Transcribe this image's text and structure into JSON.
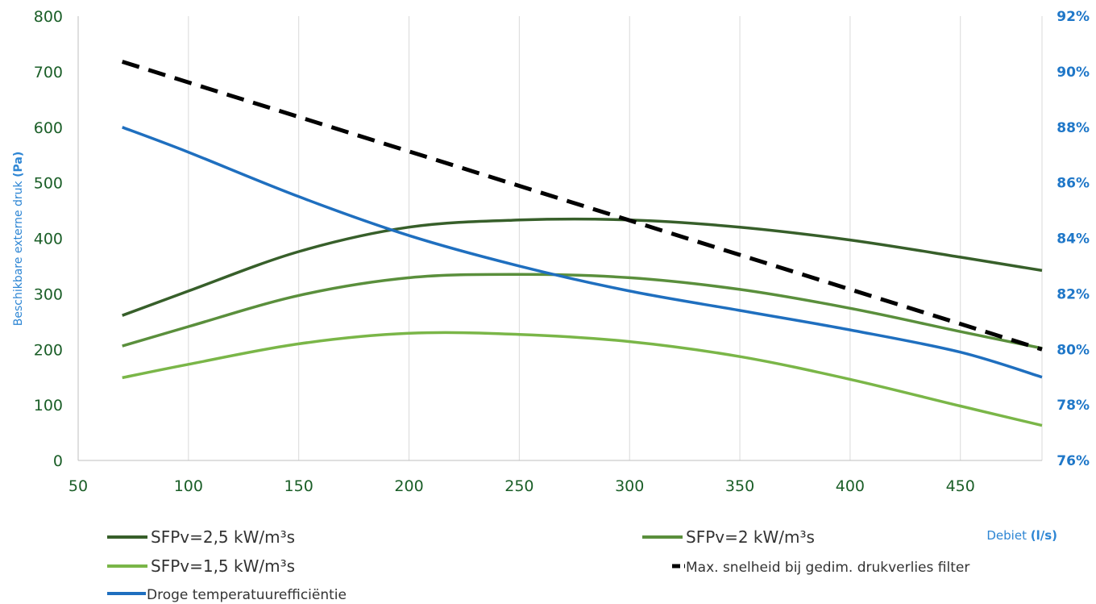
{
  "chart_data": {
    "type": "line",
    "xlabel": "Debiet",
    "xlabel_unit": "(l/s)",
    "ylabel": "Beschikbare externe druk",
    "ylabel_unit": "(Pa)",
    "xlim": [
      50,
      487
    ],
    "ylim": [
      0,
      800
    ],
    "y2lim": [
      76,
      92
    ],
    "x_ticks": [
      "50",
      "100",
      "150",
      "200",
      "250",
      "300",
      "350",
      "400",
      "450"
    ],
    "y_ticks": [
      "0",
      "100",
      "200",
      "300",
      "400",
      "500",
      "600",
      "700",
      "800"
    ],
    "y2_ticks": [
      "76%",
      "78%",
      "80%",
      "82%",
      "84%",
      "86%",
      "88%",
      "90%",
      "92%"
    ],
    "grid": "vertical",
    "legend_position": "bottom",
    "series": [
      {
        "name": "SFPv=2,5 kW/m³s",
        "axis": "left",
        "color": "#375f2a",
        "style": "solid",
        "x": [
          70,
          100,
          150,
          200,
          250,
          300,
          350,
          400,
          450,
          487
        ],
        "y": [
          261,
          305,
          376,
          420,
          433,
          433,
          420,
          397,
          366,
          342
        ]
      },
      {
        "name": "SFPv=2 kW/m³s",
        "axis": "left",
        "color": "#5a8f3c",
        "style": "solid",
        "x": [
          70,
          100,
          150,
          200,
          250,
          300,
          350,
          400,
          450,
          487
        ],
        "y": [
          206,
          241,
          297,
          329,
          335,
          329,
          308,
          274,
          232,
          202
        ]
      },
      {
        "name": "SFPv=1,5 kW/m³s",
        "axis": "left",
        "color": "#7ab648",
        "style": "solid",
        "x": [
          70,
          100,
          150,
          200,
          250,
          300,
          350,
          400,
          450,
          487
        ],
        "y": [
          149,
          173,
          210,
          229,
          227,
          214,
          187,
          146,
          98,
          63
        ]
      },
      {
        "name": "Max. snelheid bij gedim. drukverlies filter",
        "axis": "left",
        "color": "#000000",
        "style": "dashed",
        "x": [
          70,
          487
        ],
        "y": [
          718,
          200
        ]
      },
      {
        "name": "Droge temperatuurefficiëntie",
        "axis": "right",
        "color": "#1f6fbf",
        "style": "solid",
        "x": [
          70,
          100,
          150,
          200,
          250,
          300,
          350,
          400,
          450,
          487
        ],
        "y": [
          88.0,
          87.1,
          85.5,
          84.1,
          83.0,
          82.1,
          81.4,
          80.7,
          79.9,
          79.0
        ]
      }
    ]
  }
}
